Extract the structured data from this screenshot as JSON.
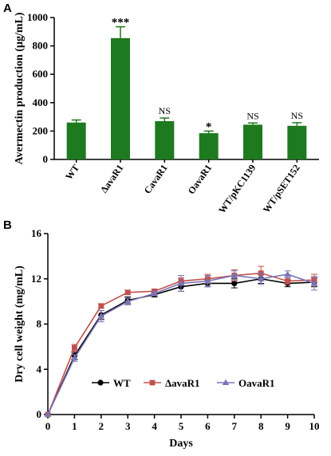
{
  "chart_data": [
    {
      "panel": "A",
      "type": "bar",
      "ylabel": "Avermectin production (µg/mL)",
      "ylim": [
        0,
        1000
      ],
      "yticks": [
        0,
        200,
        400,
        600,
        800,
        1000
      ],
      "grid": false,
      "bar_color": "#1e7a1e",
      "categories": [
        "WT",
        "ΔavaR1",
        "CavaR1",
        "OavaR1",
        "WT/pKC1139",
        "WT/pSET152"
      ],
      "values": [
        260,
        855,
        270,
        185,
        245,
        237
      ],
      "errors": [
        18,
        80,
        22,
        15,
        12,
        22
      ],
      "annotations": [
        "",
        "***",
        "NS",
        "*",
        "NS",
        "NS"
      ]
    },
    {
      "panel": "B",
      "type": "line",
      "xlabel": "Days",
      "ylabel": "Dry cell weight (mg/mL)",
      "xlim": [
        0,
        10
      ],
      "ylim": [
        0,
        16
      ],
      "xticks": [
        0,
        1,
        2,
        3,
        4,
        5,
        6,
        7,
        8,
        9,
        10
      ],
      "yticks": [
        0,
        4,
        8,
        12,
        16
      ],
      "grid": false,
      "legend_position": "bottom-center",
      "x": [
        0,
        1,
        2,
        3,
        4,
        5,
        6,
        7,
        8,
        9,
        10
      ],
      "series": [
        {
          "name": "WT",
          "color": "#000000",
          "marker": "circle",
          "values": [
            0,
            5.2,
            8.8,
            10.1,
            10.6,
            11.3,
            11.6,
            11.6,
            12.0,
            11.6,
            11.7
          ],
          "errors": [
            0,
            0.3,
            0.4,
            0.3,
            0.2,
            0.4,
            0.3,
            0.4,
            0.4,
            0.3,
            0.4
          ]
        },
        {
          "name": "ΔavaR1",
          "color": "#c0504d",
          "marker": "square",
          "values": [
            0,
            5.9,
            9.6,
            10.8,
            10.9,
            11.8,
            12.0,
            12.3,
            12.5,
            11.8,
            11.9
          ],
          "errors": [
            0,
            0.3,
            0.2,
            0.2,
            0.2,
            0.3,
            0.4,
            0.5,
            0.6,
            0.3,
            0.5
          ]
        },
        {
          "name": "OavaR1",
          "color": "#7b74b8",
          "marker": "triangle",
          "values": [
            0,
            5.0,
            8.7,
            10.0,
            10.7,
            11.6,
            11.8,
            12.3,
            12.0,
            12.4,
            11.6
          ],
          "errors": [
            0,
            0.3,
            0.5,
            0.3,
            0.2,
            0.7,
            0.5,
            0.4,
            0.5,
            0.3,
            0.6
          ]
        }
      ]
    }
  ]
}
